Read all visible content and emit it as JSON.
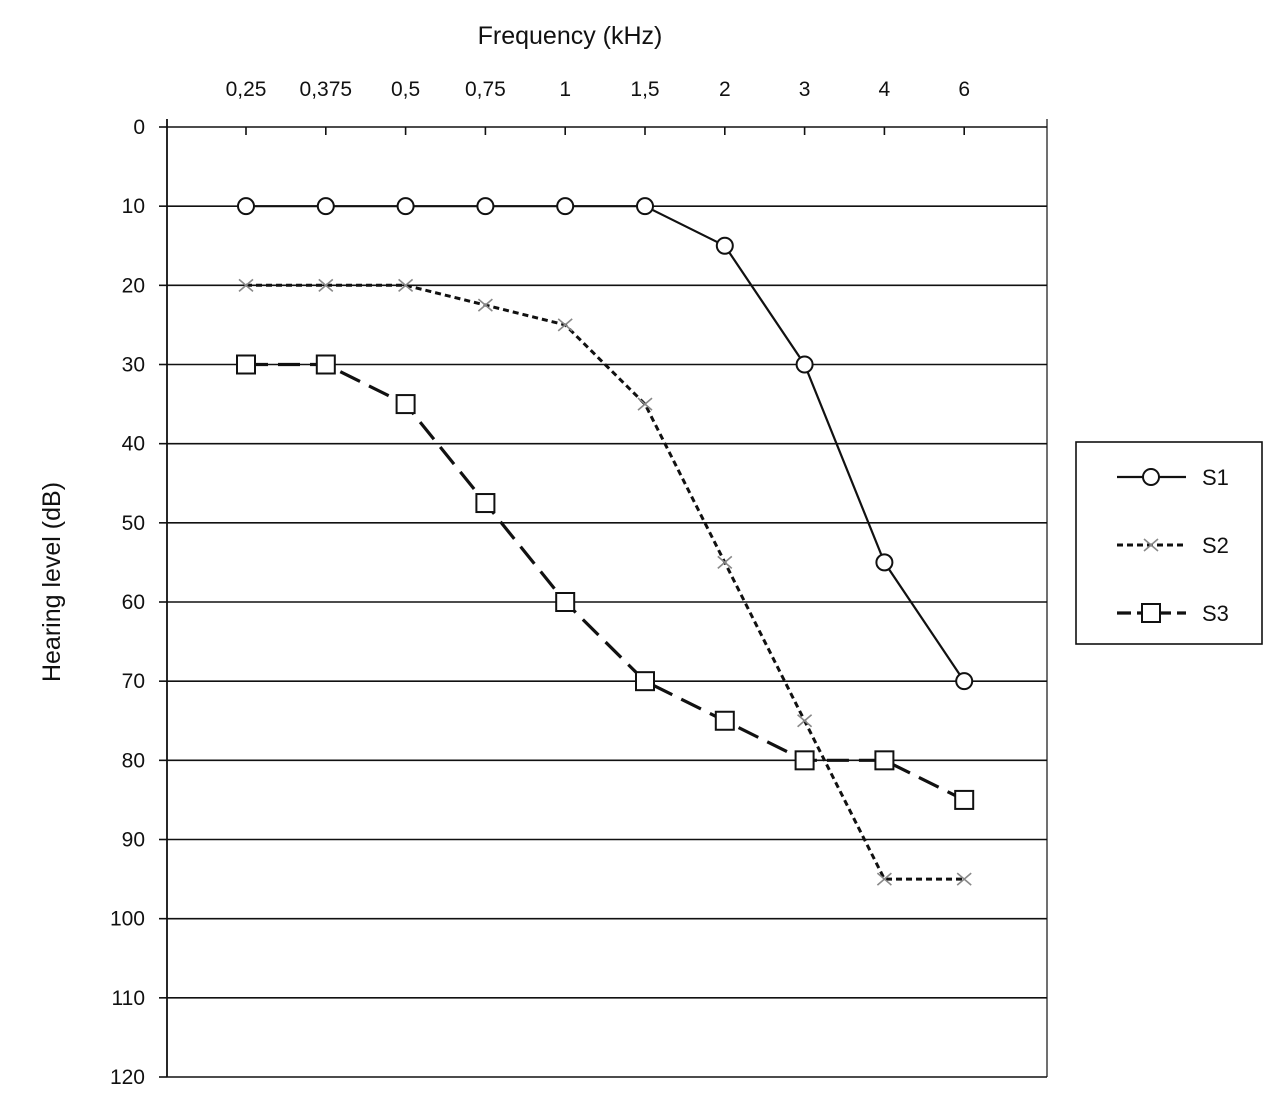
{
  "chart_data": {
    "type": "line",
    "title": "",
    "xlabel": "Frequency   (kHz)",
    "ylabel": "Hearing level   (dB)",
    "x_position": "top",
    "y_inverted": true,
    "categories": [
      "0,25",
      "0,375",
      "0,5",
      "0,75",
      "1",
      "1,5",
      "2",
      "3",
      "4",
      "6"
    ],
    "ylim": [
      0,
      120
    ],
    "yticks": [
      0,
      10,
      20,
      30,
      40,
      50,
      60,
      70,
      80,
      90,
      100,
      110,
      120
    ],
    "grid": true,
    "legend": "right",
    "series": [
      {
        "name": "S1",
        "marker": "circle",
        "line": "solid",
        "color": "#111111",
        "values": [
          10,
          10,
          10,
          10,
          10,
          10,
          15,
          30,
          55,
          70
        ]
      },
      {
        "name": "S2",
        "marker": "x",
        "line": "dotted",
        "color": "#111111",
        "values": [
          20,
          20,
          20,
          22.5,
          25,
          35,
          55,
          75,
          95,
          95
        ]
      },
      {
        "name": "S3",
        "marker": "square",
        "line": "dashed",
        "color": "#111111",
        "values": [
          30,
          30,
          35,
          47.5,
          60,
          70,
          75,
          80,
          80,
          85
        ]
      }
    ]
  }
}
